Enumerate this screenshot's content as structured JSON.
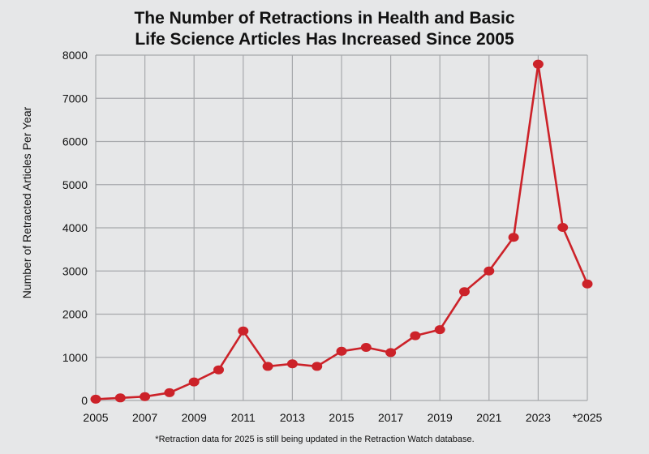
{
  "chart_data": {
    "type": "line",
    "title_lines": [
      "The Number of Retractions in Health and Basic",
      "Life Science Articles Has Increased Since 2005"
    ],
    "xlabel": "",
    "ylabel": "Number of Retracted Articles Per Year",
    "x": [
      2005,
      2006,
      2007,
      2008,
      2009,
      2010,
      2011,
      2012,
      2013,
      2014,
      2015,
      2016,
      2017,
      2018,
      2019,
      2020,
      2021,
      2022,
      2023,
      2024,
      2025
    ],
    "x_tick_labels": [
      "2005",
      "2007",
      "2009",
      "2011",
      "2013",
      "2015",
      "2017",
      "2019",
      "2021",
      "2023",
      "*2025"
    ],
    "x_tick_values": [
      2005,
      2007,
      2009,
      2011,
      2013,
      2015,
      2017,
      2019,
      2021,
      2023,
      2025
    ],
    "xlim": [
      2005,
      2025
    ],
    "series": [
      {
        "values": [
          30,
          60,
          90,
          180,
          430,
          710,
          1610,
          790,
          850,
          790,
          1140,
          1230,
          1110,
          1500,
          1640,
          2520,
          3000,
          3780,
          7790,
          4010,
          2700
        ]
      }
    ],
    "y_tick_values": [
      0,
      1000,
      2000,
      3000,
      4000,
      5000,
      6000,
      7000,
      8000
    ],
    "y_tick_labels": [
      "0",
      "1000",
      "2000",
      "3000",
      "4000",
      "5000",
      "6000",
      "7000",
      "8000"
    ],
    "ylim": [
      0,
      8000
    ],
    "grid": true,
    "footnote": "*Retraction data for 2025 is still being updated in the Retraction Watch database.",
    "colors": {
      "line": "#cc2229",
      "marker": "#cc2229",
      "grid": "#a7a9ac",
      "background": "#e6e7e8"
    }
  }
}
